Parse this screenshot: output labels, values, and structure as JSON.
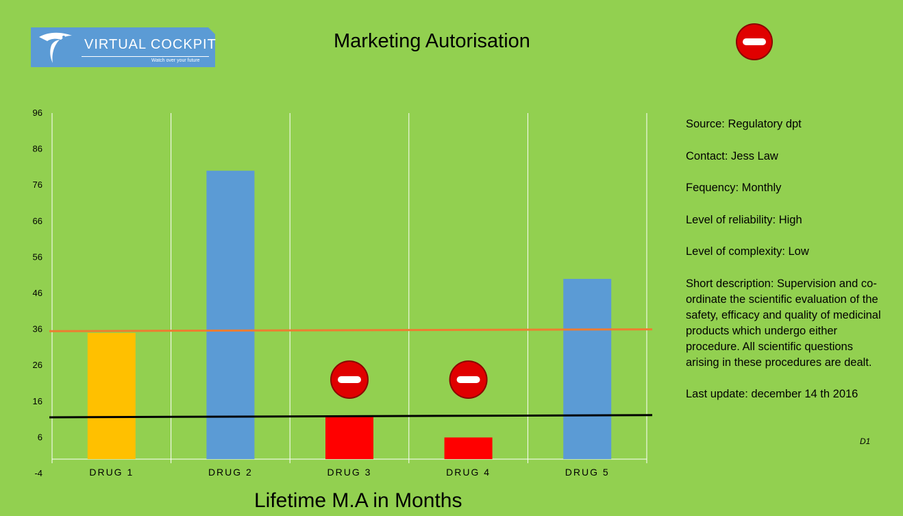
{
  "header": {
    "title": "Marketing Autorisation",
    "status_icon": "no-entry-icon"
  },
  "logo": {
    "name": "VIRTUAL COCKPIT",
    "tagline": "Watch over your future",
    "icon": "eagle-icon"
  },
  "info": {
    "source": "Source: Regulatory dpt",
    "contact": "Contact: Jess Law",
    "frequency": "Fequency: Monthly",
    "reliability": "Level of reliability: High",
    "complexity": "Level of complexity: Low",
    "description": "Short description:   Supervision and co-ordinate the scientific evaluation of the safety, efficacy and quality of medicinal products which undergo either procedure. All scientific questions arising in these procedures are dealt.",
    "last_update": "Last update:  december 14 th 2016",
    "code": "D1"
  },
  "chart_data": {
    "type": "bar",
    "xlabel": "Lifetime M.A in Months",
    "categories": [
      "DRUG 1",
      "DRUG 2",
      "DRUG 3",
      "DRUG 4",
      "DRUG 5"
    ],
    "values": [
      35,
      80,
      12,
      6,
      50
    ],
    "colors": [
      "#ffc000",
      "#5b9bd5",
      "#ff0000",
      "#ff0000",
      "#5b9bd5"
    ],
    "ylim": [
      -4,
      96
    ],
    "yticks": [
      -4,
      6,
      16,
      26,
      36,
      46,
      56,
      66,
      76,
      86,
      96
    ],
    "grid": "vertical",
    "reference_lines": [
      {
        "y_start": 35.5,
        "y_end": 36,
        "color": "#ed7d31"
      },
      {
        "y_start": 11.6,
        "y_end": 12.2,
        "color": "#000000"
      }
    ],
    "status_markers": [
      {
        "category": "DRUG 3",
        "icon": "no-entry-icon"
      },
      {
        "category": "DRUG 4",
        "icon": "no-entry-icon"
      }
    ]
  }
}
